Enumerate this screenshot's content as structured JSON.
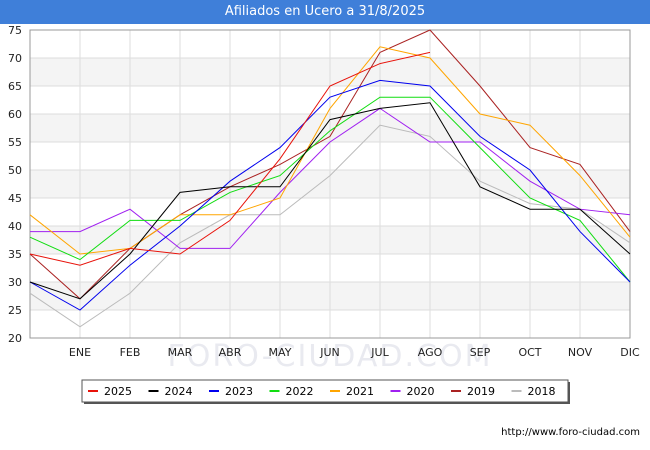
{
  "title": "Afiliados en Ucero a 31/8/2025",
  "footer_url": "http://www.foro-ciudad.com",
  "watermark": "FORO-CIUDAD.COM",
  "chart_data": {
    "type": "line",
    "categories": [
      "",
      "ENE",
      "FEB",
      "MAR",
      "ABR",
      "MAY",
      "JUN",
      "JUL",
      "AGO",
      "SEP",
      "OCT",
      "NOV",
      "DIC"
    ],
    "ylim": [
      20,
      75
    ],
    "yticks": [
      20,
      25,
      30,
      35,
      40,
      45,
      50,
      55,
      60,
      65,
      70,
      75
    ],
    "grid": true,
    "legend_position": "bottom",
    "series": [
      {
        "name": "2025",
        "color": "#e8120a",
        "values": [
          35,
          33,
          36,
          35,
          41,
          52,
          65,
          69,
          71,
          null,
          null,
          null,
          null
        ]
      },
      {
        "name": "2024",
        "color": "#000000",
        "values": [
          30,
          27,
          35,
          46,
          47,
          47,
          59,
          61,
          62,
          47,
          43,
          43,
          35
        ]
      },
      {
        "name": "2023",
        "color": "#0000ee",
        "values": [
          30,
          25,
          33,
          40,
          48,
          54,
          63,
          66,
          65,
          56,
          50,
          39,
          30
        ]
      },
      {
        "name": "2022",
        "color": "#11dd11",
        "values": [
          38,
          34,
          41,
          41,
          46,
          49,
          57,
          63,
          63,
          54,
          45,
          41,
          30
        ]
      },
      {
        "name": "2021",
        "color": "#ffa500",
        "values": [
          42,
          35,
          36,
          42,
          42,
          45,
          61,
          72,
          70,
          60,
          58,
          49,
          38
        ]
      },
      {
        "name": "2020",
        "color": "#a020f0",
        "values": [
          39,
          39,
          43,
          36,
          36,
          46,
          55,
          61,
          55,
          55,
          48,
          43,
          42
        ]
      },
      {
        "name": "2019",
        "color": "#aa2222",
        "values": [
          35,
          27,
          36,
          42,
          47,
          51,
          56,
          71,
          75,
          65,
          54,
          51,
          39
        ]
      },
      {
        "name": "2018",
        "color": "#bbbbbb",
        "values": [
          28,
          22,
          28,
          37,
          42,
          42,
          49,
          58,
          56,
          48,
          44,
          43,
          37
        ]
      }
    ]
  }
}
